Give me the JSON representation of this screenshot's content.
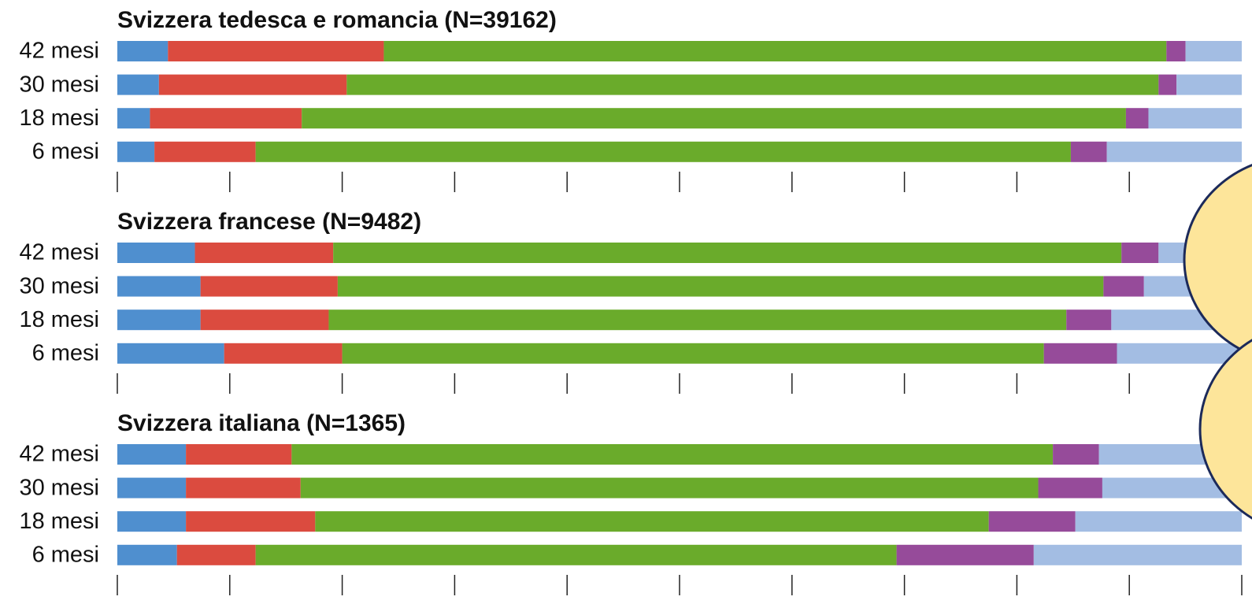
{
  "chart_data": [
    {
      "type": "bar",
      "orientation": "horizontal",
      "stacked": true,
      "title": "Svizzera tedesca e romancia (N=39162)",
      "categories": [
        "42 mesi",
        "30 mesi",
        "18 mesi",
        "6 mesi"
      ],
      "xlim": [
        0,
        100
      ],
      "xticks": [
        0,
        10,
        20,
        30,
        40,
        50,
        60,
        70,
        80,
        90,
        100
      ],
      "series": [
        {
          "color": "#4f8fcf",
          "values": [
            4.5,
            3.7,
            2.9,
            3.3
          ]
        },
        {
          "color": "#db4b3f",
          "values": [
            19.2,
            16.7,
            13.5,
            9.0
          ]
        },
        {
          "color": "#6aab2b",
          "values": [
            69.6,
            72.2,
            73.3,
            72.5
          ]
        },
        {
          "color": "#964b9a",
          "values": [
            1.7,
            1.6,
            2.0,
            3.2
          ]
        },
        {
          "color": "#a3bde3",
          "values": [
            5.0,
            5.8,
            8.3,
            12.0
          ]
        }
      ]
    },
    {
      "type": "bar",
      "orientation": "horizontal",
      "stacked": true,
      "title": "Svizzera francese (N=9482)",
      "categories": [
        "42 mesi",
        "30 mesi",
        "18 mesi",
        "6 mesi"
      ],
      "xlim": [
        0,
        100
      ],
      "xticks": [
        0,
        10,
        20,
        30,
        40,
        50,
        60,
        70,
        80,
        90,
        100
      ],
      "series": [
        {
          "color": "#4f8fcf",
          "values": [
            6.9,
            7.4,
            7.4,
            9.5
          ]
        },
        {
          "color": "#db4b3f",
          "values": [
            12.3,
            12.2,
            11.4,
            10.5
          ]
        },
        {
          "color": "#6aab2b",
          "values": [
            70.1,
            68.1,
            65.6,
            62.4
          ]
        },
        {
          "color": "#964b9a",
          "values": [
            3.3,
            3.6,
            4.0,
            6.5
          ]
        },
        {
          "color": "#a3bde3",
          "values": [
            7.4,
            8.7,
            11.6,
            11.1
          ]
        }
      ]
    },
    {
      "type": "bar",
      "orientation": "horizontal",
      "stacked": true,
      "title": "Svizzera italiana (N=1365)",
      "categories": [
        "42 mesi",
        "30 mesi",
        "18 mesi",
        "6 mesi"
      ],
      "xlim": [
        0,
        100
      ],
      "xticks": [
        0,
        10,
        20,
        30,
        40,
        50,
        60,
        70,
        80,
        90,
        100
      ],
      "series": [
        {
          "color": "#4f8fcf",
          "values": [
            6.1,
            6.1,
            6.1,
            5.3
          ]
        },
        {
          "color": "#db4b3f",
          "values": [
            9.4,
            10.2,
            11.5,
            7.0
          ]
        },
        {
          "color": "#6aab2b",
          "values": [
            67.7,
            65.6,
            59.9,
            57.0
          ]
        },
        {
          "color": "#964b9a",
          "values": [
            4.1,
            5.7,
            7.7,
            12.2
          ]
        },
        {
          "color": "#a3bde3",
          "values": [
            12.7,
            12.4,
            14.8,
            18.5
          ]
        }
      ]
    }
  ]
}
